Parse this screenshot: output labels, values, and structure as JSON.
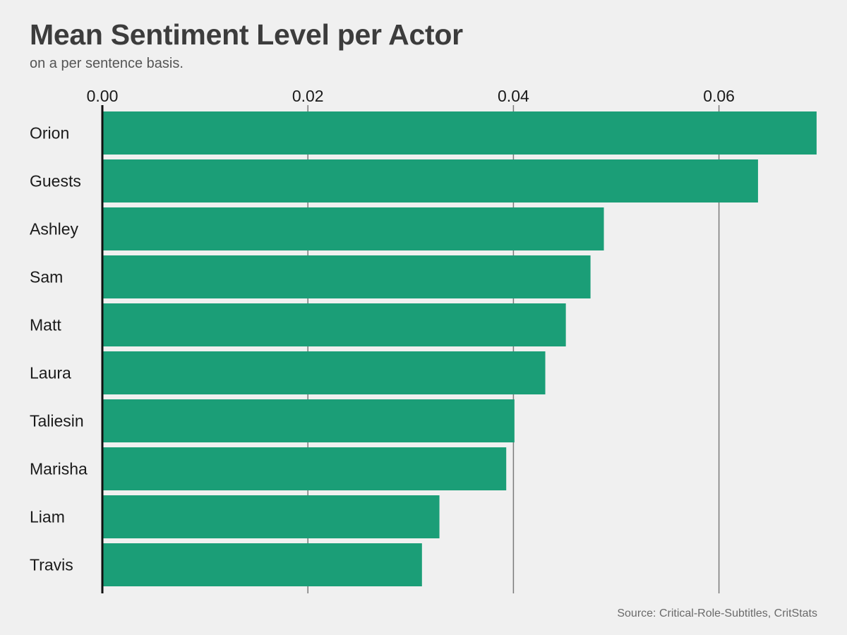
{
  "title": "Mean Sentiment Level per Actor",
  "subtitle": "on a per sentence basis.",
  "source": "Source: Critical-Role-Subtitles, CritStats",
  "chart_data": {
    "type": "bar",
    "orientation": "horizontal",
    "title": "Mean Sentiment Level per Actor",
    "subtitle": "on a per sentence basis.",
    "xlabel": "",
    "ylabel": "",
    "categories": [
      "Orion",
      "Guests",
      "Ashley",
      "Sam",
      "Matt",
      "Laura",
      "Taliesin",
      "Marisha",
      "Liam",
      "Travis"
    ],
    "values": [
      0.0695,
      0.0638,
      0.0488,
      0.0475,
      0.0451,
      0.0431,
      0.0401,
      0.0393,
      0.0328,
      0.0311
    ],
    "xlim": [
      0,
      0.07
    ],
    "ticks": [
      0,
      0.02,
      0.04,
      0.06
    ],
    "tick_labels": [
      "0.00",
      "0.02",
      "0.04",
      "0.06"
    ],
    "grid": "vertical",
    "bar_color": "#1b9e77",
    "source": "Source: Critical-Role-Subtitles, CritStats"
  },
  "colors": {
    "background": "#f0f0f0",
    "bar": "#1b9e77",
    "grid": "#7a7a7a",
    "axis": "#111111",
    "title": "#3c3c3c"
  }
}
